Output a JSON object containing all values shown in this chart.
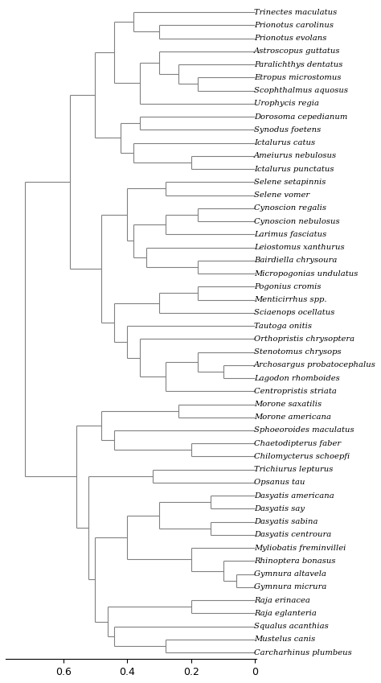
{
  "taxa_order": [
    "Trinectes maculatus",
    "Prionotus carolinus",
    "Prionotus evolans",
    "Astroscopus guttatus",
    "Paralichthys dentatus",
    "Etropus microstomus",
    "Scophthalmus aquosus",
    "Urophycis regia",
    "Dorosoma cepedianum",
    "Synodus foetens",
    "Ictalurus catus",
    "Ameiurus nebulosus",
    "Ictalurus punctatus",
    "Selene setapinnis",
    "Selene vomer",
    "Cynoscion regalis",
    "Cynoscion nebulosus",
    "Larimus fasciatus",
    "Leiostomus xanthurus",
    "Bairdiella chrysoura",
    "Micropogonias undulatus",
    "Pogonius cromis",
    "Menticirrhus spp.",
    "Sciaenops ocellatus",
    "Tautoga onitis",
    "Orthopristis chrysoptera",
    "Stenotomus chrysops",
    "Archosargus probatocephalus",
    "Lagodon rhomboides",
    "Centropristis striata",
    "Morone saxatilis",
    "Morone americana",
    "Sphoeoroides maculatus",
    "Chaetodipterus faber",
    "Chilomycterus schoepfi",
    "Trichiurus lepturus",
    "Opsanus tau",
    "Dasyatis americana",
    "Dasyatis say",
    "Dasyatis sabina",
    "Dasyatis centroura",
    "Myliobatis freminvillei",
    "Rhinoptera bonasus",
    "Gymnura altavela",
    "Gymnura micrura",
    "Raja erinacea",
    "Raja eglanteria",
    "Squalus acanthias",
    "Mustelus canis",
    "Carcharhinus plumbeus"
  ],
  "line_color": "#808080",
  "label_color": "#000000",
  "background_color": "#ffffff",
  "fontsize": 7.2,
  "figsize": [
    4.74,
    8.49
  ],
  "dpi": 100,
  "xlabel_ticks": [
    0.6,
    0.4,
    0.2,
    0.0
  ],
  "xlabel_labels": [
    "0.6",
    "0.4",
    "0.2",
    "0"
  ]
}
